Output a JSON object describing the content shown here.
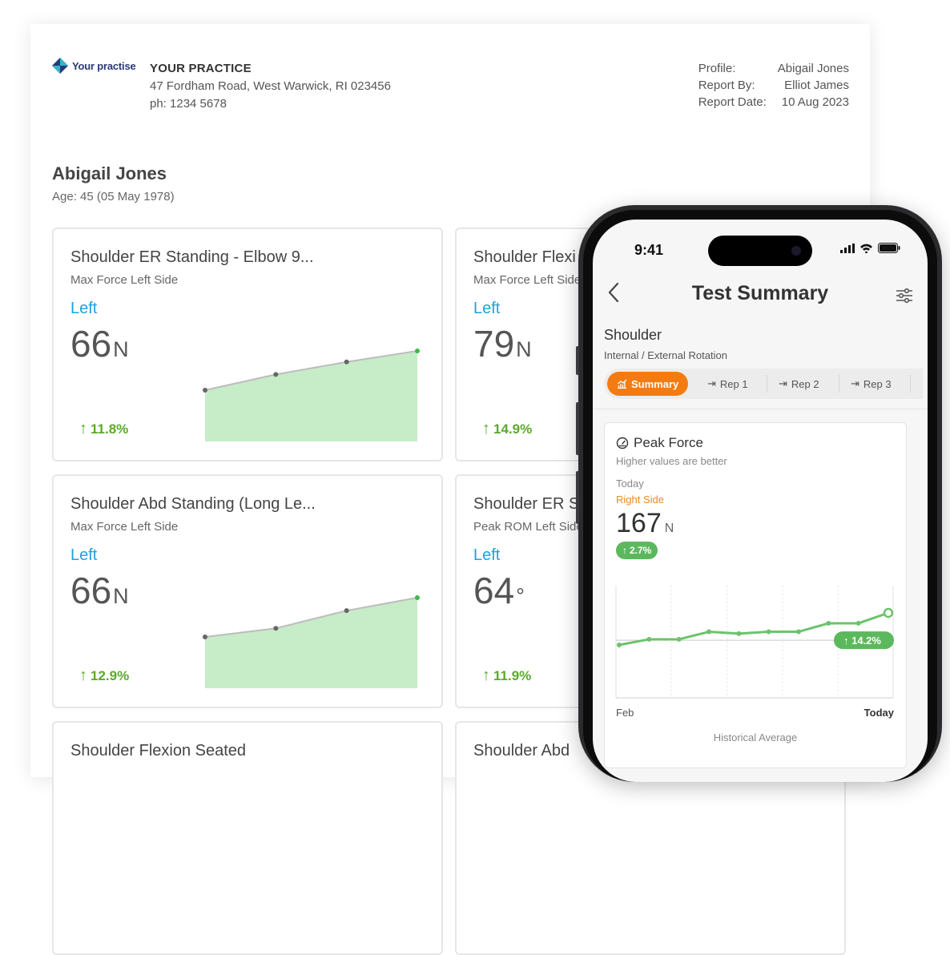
{
  "practice": {
    "logo_text": "Your practise",
    "name": "YOUR PRACTICE",
    "address": "47 Fordham Road, West Warwick, RI 023456",
    "phone": "ph: 1234 5678"
  },
  "meta": {
    "profile_label": "Profile:",
    "profile_value": "Abigail Jones",
    "report_by_label": "Report By:",
    "report_by_value": "Elliot James",
    "report_date_label": "Report Date:",
    "report_date_value": "10 Aug 2023"
  },
  "patient": {
    "name": "Abigail Jones",
    "age": "Age: 45 (05 May 1978)"
  },
  "colors": {
    "accent": "#1aa3e0",
    "positive": "#5aaa2a",
    "area": "#c6ecc8",
    "tab_active": "#f47b12",
    "chart_line": "#6cc36c"
  },
  "cards": [
    {
      "title": "Shoulder ER Standing - Elbow 9...",
      "subtitle": "Max Force Left Side",
      "side": "Left",
      "value": "66",
      "unit": "N",
      "change": "11.8%",
      "spark": [
        0,
        0.4,
        0.72,
        1.0
      ]
    },
    {
      "title": "Shoulder Flexi",
      "subtitle": "Max Force Left Side",
      "side": "Left",
      "value": "79",
      "unit": "N",
      "change": "14.9%"
    },
    {
      "title": "Shoulder Abd Standing (Long Le...",
      "subtitle": "Max Force Left Side",
      "side": "Left",
      "value": "66",
      "unit": "N",
      "change": "12.9%",
      "spark": [
        0,
        0.22,
        0.67,
        1.0
      ]
    },
    {
      "title": "Shoulder ER S",
      "subtitle": "Peak ROM Left Side",
      "side": "Left",
      "value": "64",
      "unit": "°",
      "change": "11.9%"
    },
    {
      "title": "Shoulder Flexion Seated",
      "subtitle": "",
      "side": "",
      "value": "",
      "unit": "",
      "change": ""
    },
    {
      "title": "Shoulder Abd",
      "subtitle": "",
      "side": "",
      "value": "",
      "unit": "",
      "change": ""
    }
  ],
  "phone": {
    "status_time": "9:41",
    "nav_title": "Test Summary",
    "section_title": "Shoulder",
    "section_subtitle": "Internal / External Rotation",
    "tabs": [
      {
        "label": "Summary",
        "icon": "chart-icon",
        "active": true
      },
      {
        "label": "Rep 1",
        "icon": "arrow-to-bar-icon",
        "active": false
      },
      {
        "label": "Rep 2",
        "icon": "arrow-to-bar-icon",
        "active": false
      },
      {
        "label": "Rep 3",
        "icon": "arrow-to-bar-icon",
        "active": false
      }
    ],
    "peak": {
      "title": "Peak Force",
      "hint": "Higher values are better",
      "when": "Today",
      "side": "Right Side",
      "value": "167",
      "unit": "N",
      "change": "2.7%",
      "avg_change": "14.2%",
      "x_start": "Feb",
      "x_end": "Today",
      "footer": "Historical Average",
      "series": [
        0.0,
        0.12,
        0.12,
        0.28,
        0.24,
        0.28,
        0.28,
        0.46,
        0.46,
        0.68
      ],
      "average": 0.1
    }
  }
}
